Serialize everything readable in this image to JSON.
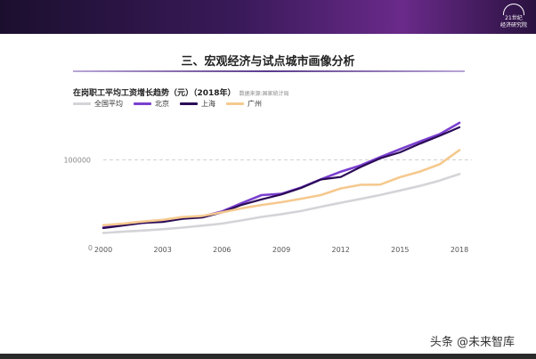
{
  "header": {
    "logo_text_1": "21世纪",
    "logo_text_2": "经济研究院"
  },
  "section_title": "三、宏观经济与试点城市画像分析",
  "watermark": "头条 @未来智库",
  "chart_data": {
    "type": "line",
    "title": "在岗职工平均工资增长趋势（元）（2018年）",
    "source": "数据来源:国家统计局",
    "x": [
      2000,
      2001,
      2002,
      2003,
      2004,
      2005,
      2006,
      2007,
      2008,
      2009,
      2010,
      2011,
      2012,
      2013,
      2014,
      2015,
      2016,
      2017,
      2018
    ],
    "x_tick_labels": [
      "2000",
      "2003",
      "2006",
      "2009",
      "2012",
      "2015",
      "2018"
    ],
    "x_ticks": [
      2000,
      2003,
      2006,
      2009,
      2012,
      2015,
      2018
    ],
    "y_tick_labels": [
      "0",
      "100000"
    ],
    "y_ticks": [
      0,
      100000
    ],
    "ylim": [
      0,
      160000
    ],
    "xlim": [
      2000,
      2018
    ],
    "reference_line": 100000,
    "series": [
      {
        "name": "全国平均",
        "color": "#d4d4d8",
        "values": [
          9400,
          10900,
          12400,
          14000,
          16000,
          18400,
          21000,
          24900,
          29200,
          32700,
          36500,
          41800,
          46800,
          51500,
          56400,
          62000,
          67600,
          74300,
          82400
        ]
      },
      {
        "name": "北京",
        "color": "#7a3fd0",
        "values": [
          16000,
          19200,
          21900,
          24100,
          27800,
          29800,
          36000,
          46500,
          56300,
          57800,
          65700,
          75800,
          85300,
          93000,
          103400,
          113100,
          122700,
          131700,
          145800
        ]
      },
      {
        "name": "上海",
        "color": "#2a0a55",
        "values": [
          15400,
          18500,
          21800,
          23000,
          26800,
          28500,
          34900,
          44200,
          51000,
          57000,
          65100,
          75600,
          78700,
          91000,
          101900,
          109200,
          119900,
          129800,
          140300
        ]
      },
      {
        "name": "广州",
        "color": "#f5c98e",
        "values": [
          19000,
          20900,
          23500,
          25600,
          29000,
          30500,
          34900,
          40000,
          44000,
          47500,
          51700,
          56300,
          64600,
          69000,
          69300,
          78500,
          85400,
          94400,
          112000
        ]
      }
    ]
  }
}
